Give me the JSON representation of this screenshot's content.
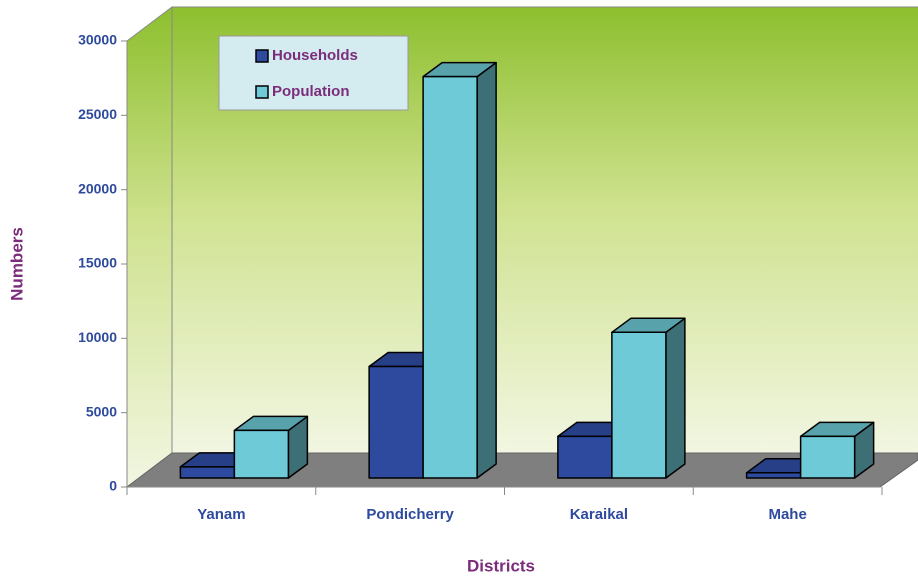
{
  "chart_data": {
    "type": "bar3d",
    "categories": [
      "Yanam",
      "Pondicherry",
      "Karaikal",
      "Mahe"
    ],
    "series": [
      {
        "name": "Households",
        "color": "#2e4a9e",
        "values": [
          750,
          7500,
          2800,
          350
        ]
      },
      {
        "name": "Population",
        "color": "#6ecad6",
        "values": [
          3200,
          27000,
          9800,
          2800
        ]
      }
    ],
    "xlabel": "Districts",
    "ylabel": "Numbers",
    "ylim": [
      0,
      30000
    ],
    "yticks": [
      0,
      5000,
      10000,
      15000,
      20000,
      25000,
      30000
    ],
    "legend": "upper left"
  }
}
